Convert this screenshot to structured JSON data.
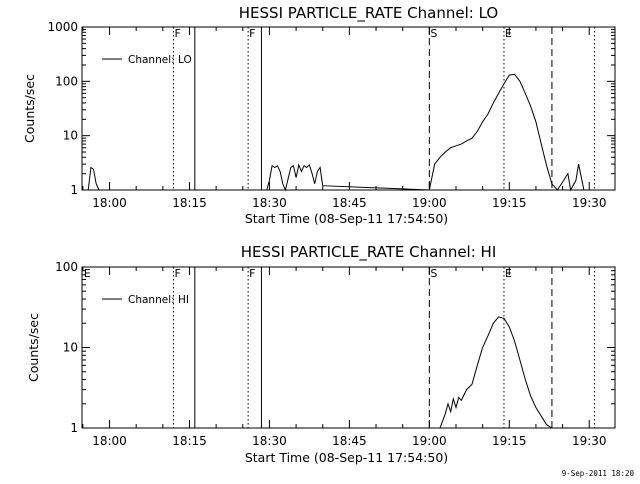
{
  "footer_stamp": "9-Sep-2011 18:20",
  "chart_data": [
    {
      "type": "line",
      "title": "HESSI PARTICLE_RATE Channel: LO",
      "xlabel": "Start Time (08-Sep-11 17:54:50)",
      "ylabel": "Counts/sec",
      "y_scale": "log",
      "ylim": [
        1,
        1000
      ],
      "y_ticks": [
        "1",
        "10",
        "100",
        "1000"
      ],
      "xlim": [
        "17:54:50",
        "19:34:50"
      ],
      "x_ticks": [
        "18:00",
        "18:15",
        "18:30",
        "18:45",
        "19:00",
        "19:15",
        "19:30"
      ],
      "legend": {
        "position": "top-left",
        "entries": [
          "Channel: LO"
        ]
      },
      "flag_markers": [
        {
          "label": "F",
          "time": "18:12",
          "style": "dotted"
        },
        {
          "label": "F",
          "time": "18:26",
          "style": "dotted"
        },
        {
          "label": "S",
          "time": "19:00",
          "style": "dashed"
        },
        {
          "label": "E",
          "time": "19:14",
          "style": "dotted"
        }
      ],
      "markers": [
        {
          "time": "18:16",
          "style": "solid"
        },
        {
          "time": "18:28.5",
          "style": "solid"
        },
        {
          "time": "19:23",
          "style": "dashed"
        },
        {
          "time": "19:31",
          "style": "dotted"
        }
      ],
      "series": [
        {
          "x": [
            "17:55.5",
            "17:56",
            "17:56.5",
            "17:57",
            "17:57.5",
            "17:58",
            "18:29.5",
            "18:30",
            "18:30.5",
            "18:31",
            "18:31.5",
            "18:32",
            "18:32.5",
            "18:33",
            "18:33.5",
            "18:34",
            "18:34.5",
            "18:35",
            "18:35.5",
            "18:36",
            "18:36.5",
            "18:37",
            "18:37.5",
            "18:38",
            "18:38.5",
            "18:39",
            "18:39.5",
            "18:40",
            "19:00",
            "19:01",
            "19:02",
            "19:03",
            "19:04",
            "19:05",
            "19:06",
            "19:07",
            "19:08",
            "19:09",
            "19:10",
            "19:11",
            "19:12",
            "19:13",
            "19:14",
            "19:15",
            "19:16",
            "19:17",
            "19:18",
            "19:19",
            "19:20",
            "19:21",
            "19:22",
            "19:23",
            "19:24",
            "19:25",
            "19:26",
            "19:26.5",
            "19:27.5",
            "19:28",
            "19:29"
          ],
          "values": [
            1,
            1,
            2.6,
            2.4,
            1.3,
            1,
            1,
            1.5,
            2.8,
            2.6,
            2.8,
            2.2,
            1.3,
            1,
            1.6,
            2.6,
            2.8,
            1.7,
            2.9,
            2.2,
            2.8,
            2.6,
            2.9,
            2.0,
            1.3,
            2.2,
            2.6,
            1.2,
            1,
            3,
            4,
            5,
            6,
            6.5,
            7,
            8,
            9,
            12,
            18,
            25,
            40,
            60,
            90,
            130,
            135,
            100,
            60,
            35,
            18,
            7,
            2.8,
            1.3,
            1,
            1.4,
            2,
            1,
            1.5,
            3,
            1
          ]
        }
      ]
    },
    {
      "type": "line",
      "title": "HESSI PARTICLE_RATE Channel: HI",
      "xlabel": "Start Time (08-Sep-11 17:54:50)",
      "ylabel": "Counts/sec",
      "y_scale": "log",
      "ylim": [
        1,
        100
      ],
      "y_ticks": [
        "1",
        "10",
        "100"
      ],
      "xlim": [
        "17:54:50",
        "19:34:50"
      ],
      "x_ticks": [
        "18:00",
        "18:15",
        "18:30",
        "18:45",
        "19:00",
        "19:15",
        "19:30"
      ],
      "legend": {
        "position": "top-left",
        "entries": [
          "Channel: HI"
        ]
      },
      "flag_markers": [
        {
          "label": "E",
          "time": "17:55",
          "style": "none"
        },
        {
          "label": "F",
          "time": "18:12",
          "style": "dotted"
        },
        {
          "label": "F",
          "time": "18:26",
          "style": "dotted"
        },
        {
          "label": "S",
          "time": "19:00",
          "style": "dashed"
        },
        {
          "label": "E",
          "time": "19:14",
          "style": "dotted"
        }
      ],
      "markers": [
        {
          "time": "18:16",
          "style": "solid"
        },
        {
          "time": "18:28.5",
          "style": "solid"
        },
        {
          "time": "19:23",
          "style": "dashed"
        },
        {
          "time": "19:31",
          "style": "dotted"
        }
      ],
      "series": [
        {
          "x": [
            "19:02",
            "19:03",
            "19:03.5",
            "19:04",
            "19:04.5",
            "19:05",
            "19:05.5",
            "19:06",
            "19:07",
            "19:08",
            "19:09",
            "19:10",
            "19:11",
            "19:12",
            "19:13",
            "19:14",
            "19:15",
            "19:16",
            "19:17",
            "19:18",
            "19:19",
            "19:20",
            "19:21",
            "19:22",
            "19:23"
          ],
          "values": [
            1,
            1.5,
            2.0,
            1.6,
            2.3,
            1.8,
            2.4,
            2.2,
            3.0,
            3.5,
            6,
            10,
            14,
            20,
            24,
            23,
            18,
            12,
            7,
            4,
            2.5,
            1.8,
            1.4,
            1.1,
            1
          ]
        }
      ]
    }
  ]
}
